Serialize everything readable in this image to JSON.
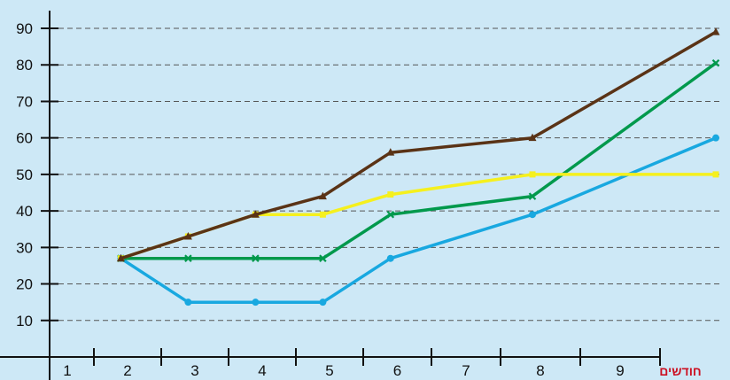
{
  "chart_data": {
    "type": "line",
    "title": "",
    "xlabel": "חודשים",
    "ylabel": "",
    "x_ticks": [
      "1",
      "2",
      "3",
      "4",
      "5",
      "6",
      "7",
      "8",
      "9"
    ],
    "y_ticks": [
      "10",
      "20",
      "30",
      "40",
      "50",
      "60",
      "70",
      "80",
      "90"
    ],
    "ylim": [
      0,
      90
    ],
    "grid": "horizontal dashed",
    "legend": "none",
    "series": [
      {
        "color": "#5a3316",
        "marker": "triangle",
        "x": [
          1.4,
          2.4,
          3.4,
          4.4,
          5.4,
          7.4,
          9.7
        ],
        "values": [
          27,
          33,
          39,
          44,
          56,
          60,
          89
        ]
      },
      {
        "color": "#f5f01e",
        "marker": "square",
        "x": [
          1.4,
          2.4,
          3.4,
          4.4,
          5.4,
          7.4,
          9.7
        ],
        "values": [
          27,
          33,
          39,
          39,
          44.5,
          50,
          50
        ]
      },
      {
        "color": "#00994c",
        "marker": "x",
        "x": [
          1.4,
          2.4,
          3.4,
          4.4,
          5.4,
          7.4,
          9.7
        ],
        "values": [
          27,
          27,
          27,
          27,
          39,
          44,
          80.5
        ]
      },
      {
        "color": "#18a8e0",
        "marker": "circle",
        "x": [
          1.4,
          2.4,
          3.4,
          4.4,
          5.4,
          7.4,
          9.7
        ],
        "values": [
          27,
          15,
          15,
          15,
          27,
          39,
          60
        ]
      }
    ]
  }
}
